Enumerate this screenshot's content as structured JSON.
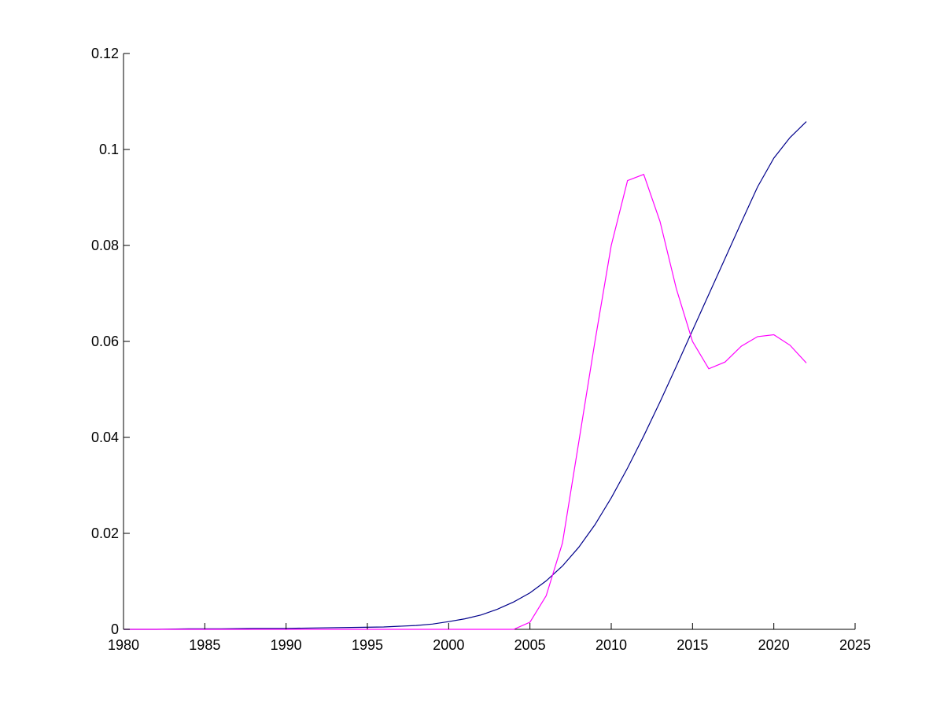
{
  "chart_data": {
    "type": "line",
    "title": "",
    "xlabel": "",
    "ylabel": "",
    "xlim": [
      1980,
      2025
    ],
    "ylim": [
      0,
      0.12
    ],
    "grid": false,
    "legend": "none",
    "x_ticks": [
      1980,
      1985,
      1990,
      1995,
      2000,
      2005,
      2010,
      2015,
      2020,
      2025
    ],
    "y_ticks": [
      0,
      0.02,
      0.04,
      0.06,
      0.08,
      0.1,
      0.12
    ],
    "x_tick_labels": [
      "1980",
      "1985",
      "1990",
      "1995",
      "2000",
      "2005",
      "2010",
      "2015",
      "2020",
      "2025"
    ],
    "y_tick_labels": [
      "0",
      "0.02",
      "0.04",
      "0.06",
      "0.08",
      "0.1",
      "0.12"
    ],
    "colors": {
      "axis": "#000000"
    },
    "series": [
      {
        "color": "#00008b",
        "x": [
          1980,
          1982,
          1984,
          1986,
          1988,
          1990,
          1992,
          1994,
          1996,
          1998,
          1999,
          2000,
          2001,
          2002,
          2003,
          2004,
          2005,
          2006,
          2007,
          2008,
          2009,
          2010,
          2011,
          2012,
          2013,
          2014,
          2015,
          2016,
          2017,
          2018,
          2019,
          2020,
          2021,
          2022
        ],
        "y": [
          0,
          0,
          0.0001,
          0.0001,
          0.0002,
          0.0002,
          0.0003,
          0.0004,
          0.0005,
          0.0008,
          0.0011,
          0.0016,
          0.0022,
          0.003,
          0.0042,
          0.0057,
          0.0076,
          0.0101,
          0.0132,
          0.0171,
          0.0218,
          0.0274,
          0.0336,
          0.0403,
          0.0474,
          0.0548,
          0.0623,
          0.0698,
          0.0773,
          0.0848,
          0.0922,
          0.0982,
          0.1025,
          0.1058
        ]
      },
      {
        "color": "#ff00ff",
        "x": [
          1980,
          1985,
          1990,
          1995,
          2000,
          2004,
          2005,
          2006,
          2007,
          2008,
          2009,
          2010,
          2011,
          2012,
          2013,
          2014,
          2015,
          2016,
          2017,
          2018,
          2019,
          2020,
          2021,
          2022
        ],
        "y": [
          0,
          0,
          0,
          0,
          0,
          0,
          0.0015,
          0.007,
          0.018,
          0.039,
          0.06,
          0.08,
          0.0935,
          0.0948,
          0.085,
          0.071,
          0.06,
          0.0543,
          0.0557,
          0.059,
          0.061,
          0.0614,
          0.0592,
          0.0555
        ]
      }
    ]
  }
}
